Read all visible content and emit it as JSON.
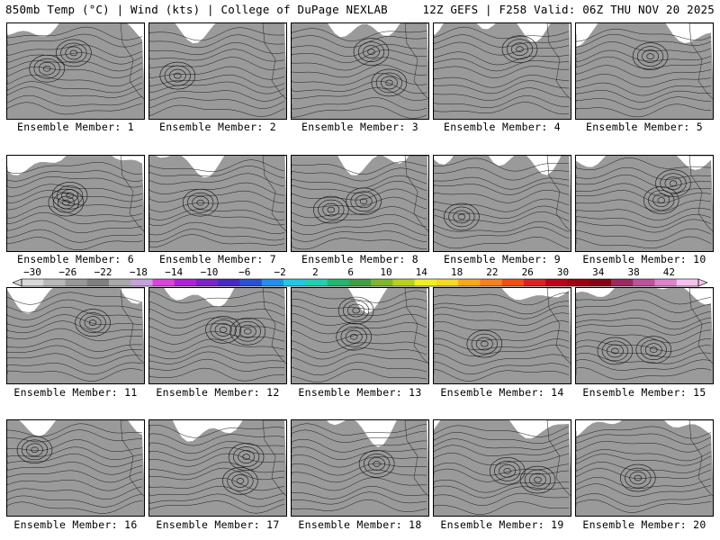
{
  "header": {
    "title_left": "850mb Temp (°C) | Wind (kts) | College of DuPage NEXLAB",
    "title_right": "12Z GEFS | F258 Valid: 06Z THU NOV 20 2025"
  },
  "members": [
    {
      "label": "Ensemble Member: 1"
    },
    {
      "label": "Ensemble Member: 2"
    },
    {
      "label": "Ensemble Member: 3"
    },
    {
      "label": "Ensemble Member: 4"
    },
    {
      "label": "Ensemble Member: 5"
    },
    {
      "label": "Ensemble Member: 6"
    },
    {
      "label": "Ensemble Member: 7"
    },
    {
      "label": "Ensemble Member: 8"
    },
    {
      "label": "Ensemble Member: 9"
    },
    {
      "label": "Ensemble Member: 10"
    },
    {
      "label": "Ensemble Member: 11"
    },
    {
      "label": "Ensemble Member: 12"
    },
    {
      "label": "Ensemble Member: 13"
    },
    {
      "label": "Ensemble Member: 14"
    },
    {
      "label": "Ensemble Member: 15"
    },
    {
      "label": "Ensemble Member: 16"
    },
    {
      "label": "Ensemble Member: 17"
    },
    {
      "label": "Ensemble Member: 18"
    },
    {
      "label": "Ensemble Member: 19"
    },
    {
      "label": "Ensemble Member: 20"
    }
  ],
  "colorbar": {
    "ticks": [
      "−30",
      "−26",
      "−22",
      "−18",
      "−14",
      "−10",
      "−6",
      "−2",
      "2",
      "6",
      "10",
      "14",
      "18",
      "22",
      "26",
      "30",
      "34",
      "38",
      "42"
    ],
    "colors": [
      "#d8d8d8",
      "#b8b8b8",
      "#989898",
      "#7f7f7f",
      "#a9a9a9",
      "#c8a0e0",
      "#e040e0",
      "#b020d8",
      "#8020c8",
      "#4828c8",
      "#2850d8",
      "#2090f0",
      "#20c8e8",
      "#20d0b0",
      "#20b870",
      "#40a040",
      "#80b828",
      "#b8d020",
      "#f0f020",
      "#f8d820",
      "#f8a818",
      "#f88018",
      "#f05010",
      "#e02020",
      "#c00018",
      "#a00010",
      "#880010",
      "#a02860",
      "#c050a0",
      "#e080d0",
      "#f8c0f0"
    ]
  }
}
